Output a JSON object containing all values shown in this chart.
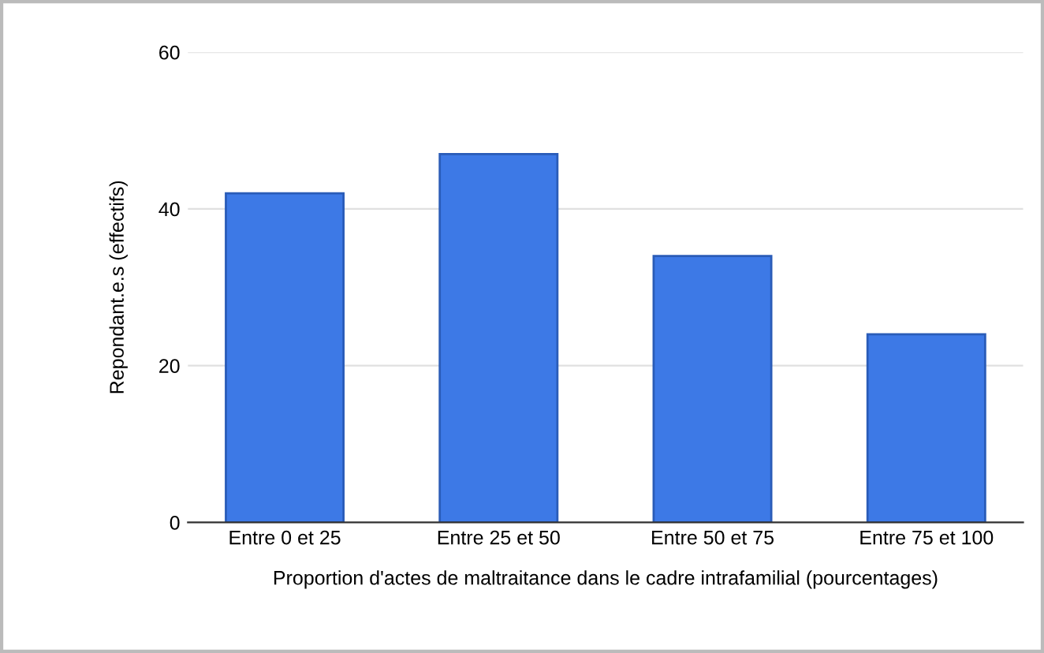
{
  "chart_data": {
    "type": "bar",
    "xlabel": "Proportion d'actes de maltraitance dans le cadre intrafamilial (pourcentages)",
    "ylabel": "Repondant.e.s (effectifs)",
    "categories": [
      "Entre 0 et 25",
      "Entre 25 et 50",
      "Entre 50 et 75",
      "Entre 75 et 100"
    ],
    "values": [
      42,
      47,
      34,
      24
    ],
    "color": "#3d79e6",
    "ylim": [
      0,
      60
    ],
    "yticks": [
      0,
      20,
      40,
      60
    ],
    "grid": "y",
    "legend": false
  }
}
